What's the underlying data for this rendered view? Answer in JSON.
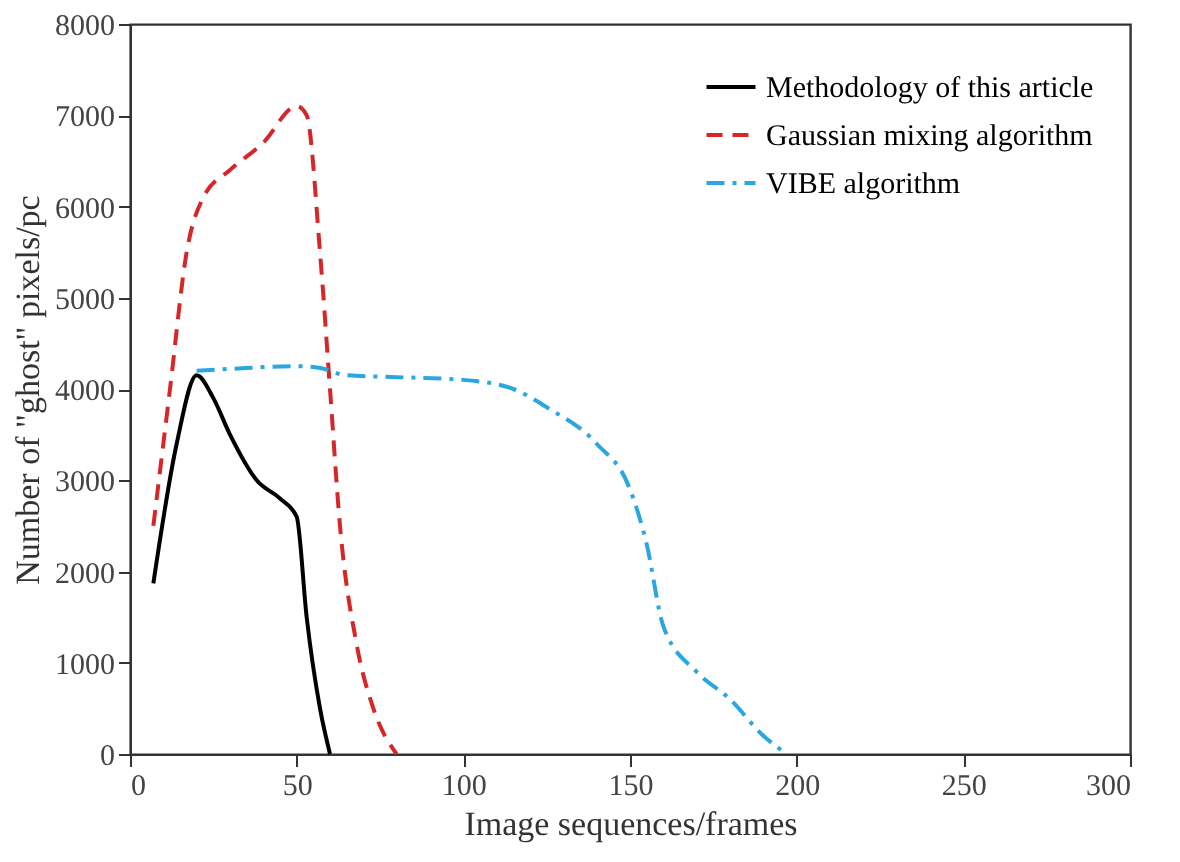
{
  "chart_data": {
    "type": "line",
    "xlabel": "Image sequences/frames",
    "ylabel": "Number of \"ghost\" pixels/pc",
    "xlim": [
      0,
      300
    ],
    "xticks": [
      0,
      50,
      100,
      150,
      200,
      250,
      300
    ],
    "ylim": [
      0,
      8000
    ],
    "yticks": [
      0,
      1000,
      2000,
      3000,
      4000,
      5000,
      6000,
      7000,
      8000
    ],
    "grid": false,
    "legend": "top right",
    "marker": "none",
    "series": [
      {
        "name": "Methodology of this article",
        "color": "#000000",
        "line_style": "solid",
        "x": [
          7,
          14,
          20,
          25,
          30,
          38,
          45,
          50,
          53,
          57,
          60
        ],
        "values": [
          1870,
          3400,
          4150,
          3900,
          3500,
          3000,
          2800,
          2600,
          1500,
          500,
          0
        ]
      },
      {
        "name": "Gaussian mixing algorithm",
        "color": "#d62728",
        "line_style": "dashed",
        "x": [
          7,
          12,
          17,
          22,
          30,
          40,
          50,
          53,
          57,
          60,
          63,
          68,
          73,
          80
        ],
        "values": [
          2500,
          4000,
          5500,
          6100,
          6400,
          6700,
          7100,
          7000,
          5500,
          4000,
          2500,
          1200,
          500,
          0
        ]
      },
      {
        "name": "VIBE algorithm",
        "color": "#2aa7e0",
        "line_style": "dashdot",
        "x": [
          20,
          30,
          50,
          57,
          65,
          80,
          100,
          115,
          125,
          140,
          150,
          155,
          160,
          170,
          180,
          190,
          197
        ],
        "values": [
          4200,
          4220,
          4250,
          4230,
          4150,
          4130,
          4100,
          4000,
          3800,
          3400,
          2900,
          2300,
          1400,
          900,
          600,
          200,
          0
        ]
      }
    ]
  }
}
